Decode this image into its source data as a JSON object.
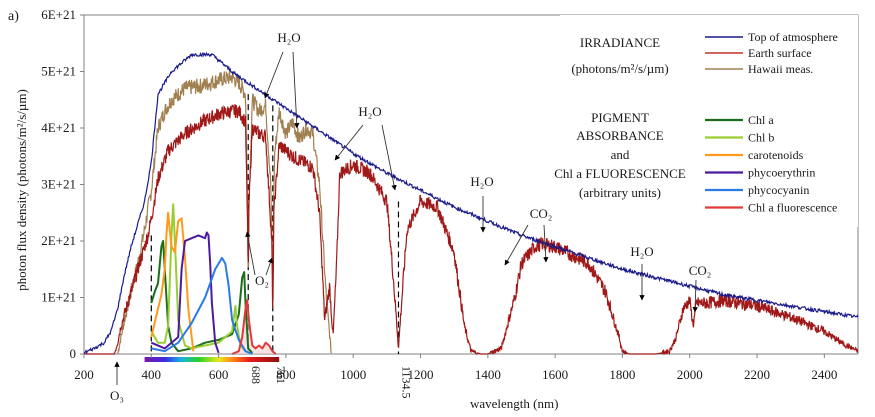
{
  "panel_label": "a)",
  "chart_data": {
    "type": "line",
    "title": "",
    "xlabel": "wavelength (nm)",
    "ylabel": "photon flux density (photons/m²/s/µm)",
    "xlim": [
      200,
      2500
    ],
    "ylim": [
      0,
      6e+21
    ],
    "grid": false,
    "x_ticks": [
      200,
      400,
      600,
      800,
      1000,
      1200,
      1400,
      1600,
      1800,
      2000,
      2200,
      2400
    ],
    "y_ticks": [
      {
        "value": 0,
        "label": "0"
      },
      {
        "value": 1e+21,
        "label": "1E+21"
      },
      {
        "value": 2e+21,
        "label": "2E+21"
      },
      {
        "value": 3e+21,
        "label": "3E+21"
      },
      {
        "value": 4e+21,
        "label": "4E+21"
      },
      {
        "value": 5e+21,
        "label": "5E+21"
      },
      {
        "value": 6e+21,
        "label": "6E+21"
      }
    ],
    "special_x_labels": [
      {
        "value": 688,
        "label": "688"
      },
      {
        "value": 761,
        "label": "761"
      },
      {
        "value": 1134.5,
        "label": "1134.5"
      }
    ],
    "dashed_lines_x": [
      400,
      688,
      761,
      1134.5
    ],
    "legend_irradiance": {
      "title": "IRRADIANCE",
      "units": "(photons/m²/s/µm)",
      "entries": [
        {
          "name": "Top of atmosphere",
          "color": "#1a1a8c"
        },
        {
          "name": "Earth surface",
          "color": "#c0302a"
        },
        {
          "name": "Hawaii meas.",
          "color": "#a08050"
        }
      ]
    },
    "legend_pigment": {
      "title_lines": [
        "PIGMENT",
        "ABSORBANCE",
        "and",
        "Chl a FLUORESCENCE",
        "(arbitrary units)"
      ],
      "entries": [
        {
          "name": "Chl a",
          "color": "#1a6e1a"
        },
        {
          "name": "Chl b",
          "color": "#9acd32"
        },
        {
          "name": "carotenoids",
          "color": "#ff9a1a"
        },
        {
          "name": "phycoerythrin",
          "color": "#4b1aa0"
        },
        {
          "name": "phycocyanin",
          "color": "#2a7ae8"
        },
        {
          "name": "Chl a fluorescence",
          "color": "#e03a3a"
        }
      ]
    },
    "series": [
      {
        "name": "Top of atmosphere",
        "color": "#1a1a8c",
        "x": [
          200,
          230,
          260,
          280,
          300,
          320,
          340,
          360,
          380,
          400,
          420,
          440,
          460,
          480,
          500,
          520,
          540,
          560,
          580,
          600,
          620,
          650,
          700,
          750,
          800,
          850,
          900,
          950,
          1000,
          1100,
          1200,
          1300,
          1400,
          1500,
          1600,
          1700,
          1800,
          1900,
          2000,
          2100,
          2200,
          2300,
          2400,
          2500
        ],
        "y": [
          2e+19,
          1e+20,
          2e+20,
          4e+20,
          8e+20,
          1.4e+21,
          1.9e+21,
          2.3e+21,
          2.7e+21,
          3.4e+21,
          4.6e+21,
          4.8e+21,
          5e+21,
          5.1e+21,
          5.2e+21,
          5.3e+21,
          5.3e+21,
          5.3e+21,
          5.3e+21,
          5.2e+21,
          5.1e+21,
          4.95e+21,
          4.75e+21,
          4.55e+21,
          4.35e+21,
          4.15e+21,
          3.95e+21,
          3.75e+21,
          3.55e+21,
          3.2e+21,
          2.9e+21,
          2.6e+21,
          2.35e+21,
          2.1e+21,
          1.9e+21,
          1.7e+21,
          1.5e+21,
          1.35e+21,
          1.2e+21,
          1.05e+21,
          9.5e+20,
          8.5e+20,
          7.5e+20,
          6.5e+20
        ]
      },
      {
        "name": "Earth surface",
        "color": "#a01818",
        "x": [
          200,
          290,
          300,
          310,
          330,
          350,
          370,
          390,
          400,
          420,
          450,
          500,
          550,
          600,
          640,
          660,
          680,
          687,
          688,
          689,
          700,
          720,
          740,
          758,
          761,
          764,
          780,
          800,
          820,
          880,
          900,
          915,
          930,
          940,
          950,
          960,
          1000,
          1050,
          1100,
          1120,
          1134.5,
          1140,
          1160,
          1200,
          1250,
          1300,
          1330,
          1350,
          1380,
          1400,
          1440,
          1480,
          1500,
          1540,
          1560,
          1600,
          1650,
          1700,
          1750,
          1790,
          1800,
          1820,
          1850,
          1900,
          1940,
          1960,
          1980,
          2000,
          2010,
          2020,
          2050,
          2100,
          2200,
          2300,
          2400,
          2450,
          2500
        ],
        "y": [
          0,
          0,
          2e+20,
          5e+20,
          9e+20,
          1.3e+21,
          1.7e+21,
          2.1e+21,
          2.4e+21,
          3.1e+21,
          3.6e+21,
          3.9e+21,
          4.1e+21,
          4.25e+21,
          4.3e+21,
          4.3e+21,
          4.1e+21,
          2e+21,
          1e+21,
          2.5e+21,
          4e+21,
          3.9e+21,
          3.85e+21,
          2e+21,
          5e+20,
          2.5e+21,
          3.7e+21,
          3.6e+21,
          3.5e+21,
          3.3e+21,
          2.5e+21,
          6e+20,
          1.2e+21,
          3e+20,
          1.5e+21,
          3.2e+21,
          3.35e+21,
          3.2e+21,
          2.7e+21,
          1.3e+21,
          1e+20,
          6e+20,
          2.2e+21,
          2.7e+21,
          2.6e+21,
          1.8e+21,
          5e+20,
          5e+19,
          0,
          0,
          1e+20,
          1e+21,
          1.6e+21,
          1.9e+21,
          1.95e+21,
          1.9e+21,
          1.75e+21,
          1.6e+21,
          1.1e+21,
          3e+20,
          5e+19,
          0,
          0,
          0,
          5e+19,
          3e+20,
          8e+20,
          9.5e+20,
          5e+20,
          9e+20,
          9e+20,
          9.5e+20,
          8.5e+20,
          6.5e+20,
          4e+20,
          2e+20,
          5e+19
        ]
      },
      {
        "name": "Hawaii meas.",
        "color": "#a08050",
        "x": [
          300,
          320,
          340,
          360,
          380,
          400,
          420,
          440,
          460,
          500,
          550,
          600,
          640,
          660,
          680,
          687,
          688,
          690,
          700,
          720,
          740,
          755,
          761,
          766,
          780,
          800,
          820,
          840,
          860,
          880,
          900,
          910,
          920,
          935
        ],
        "y": [
          0,
          6e+20,
          1.1e+21,
          1.6e+21,
          2.2e+21,
          2.9e+21,
          4e+21,
          4.3e+21,
          4.5e+21,
          4.7e+21,
          4.75e+21,
          4.85e+21,
          4.9e+21,
          4.8e+21,
          4.6e+21,
          2.2e+21,
          1.1e+21,
          2.6e+21,
          4.5e+21,
          4.3e+21,
          4.4e+21,
          3e+21,
          1.2e+21,
          3.5e+21,
          4.3e+21,
          3.9e+21,
          4.1e+21,
          3.8e+21,
          4e+21,
          3.9e+21,
          3e+21,
          2e+21,
          1e+21,
          0
        ]
      }
    ],
    "pigment_series_note": "arbitrary units plotted on same axes (values in axis units)",
    "pigment_series": [
      {
        "name": "Chl a",
        "color": "#1a6e1a",
        "x": [
          400,
          410,
          420,
          430,
          435,
          440,
          450,
          460,
          480,
          520,
          560,
          600,
          640,
          660,
          670,
          676,
          680,
          688,
          700
        ],
        "y": [
          9e+20,
          1.1e+21,
          1.25e+21,
          1.9e+21,
          2e+21,
          1.5e+21,
          5e+20,
          2e+20,
          5e+19,
          1e+20,
          2e+20,
          2.5e+20,
          3.5e+20,
          7e+20,
          1.35e+21,
          1.45e+21,
          9e+20,
          1e+20,
          2e+19
        ]
      },
      {
        "name": "Chl b",
        "color": "#9acd32",
        "x": [
          400,
          420,
          440,
          450,
          460,
          465,
          470,
          480,
          500,
          520,
          560,
          600,
          640,
          650,
          655,
          665,
          680
        ],
        "y": [
          4e+20,
          2e+20,
          2e+20,
          5e+20,
          2.1e+21,
          2.65e+21,
          2e+21,
          6e+20,
          1.5e+20,
          1e+20,
          1.5e+20,
          2e+20,
          4e+20,
          8.5e+20,
          5e+20,
          1.5e+20,
          5e+19
        ]
      },
      {
        "name": "carotenoids",
        "color": "#ff9a1a",
        "x": [
          400,
          420,
          430,
          440,
          445,
          450,
          460,
          470,
          480,
          490,
          500,
          510,
          520,
          525
        ],
        "y": [
          3e+20,
          8e+20,
          1.05e+21,
          1.5e+21,
          2.1e+21,
          2.5e+21,
          1.9e+21,
          1.8e+21,
          2.35e+21,
          2.4e+21,
          1.7e+21,
          8e+20,
          3e+20,
          5e+19
        ]
      },
      {
        "name": "phycoerythrin",
        "color": "#4b1aa0",
        "x": [
          400,
          440,
          480,
          490,
          500,
          520,
          540,
          560,
          565,
          570,
          575,
          580,
          590,
          600
        ],
        "y": [
          2e+20,
          1e+20,
          3e+20,
          1.5e+21,
          2e+21,
          2.05e+21,
          2.1e+21,
          2.05e+21,
          2.15e+21,
          2.1e+21,
          1.6e+21,
          9e+20,
          2e+20,
          2e+19
        ]
      },
      {
        "name": "phycocyanin",
        "color": "#2a7ae8",
        "x": [
          400,
          440,
          480,
          520,
          560,
          590,
          610,
          620,
          630,
          640,
          660,
          680,
          700
        ],
        "y": [
          1e+20,
          5e+19,
          2e+20,
          5.5e+20,
          1e+21,
          1.5e+21,
          1.7e+21,
          1.6e+21,
          1.2e+21,
          6e+20,
          2.5e+20,
          5e+19,
          0.0
        ]
      },
      {
        "name": "Chl a fluorescence",
        "color": "#e03a3a",
        "x": [
          640,
          660,
          670,
          680,
          685,
          690,
          700,
          710,
          720,
          730,
          740,
          750,
          760,
          770
        ],
        "y": [
          0,
          5e+19,
          3e+20,
          8e+20,
          9.5e+20,
          6e+20,
          1.5e+20,
          1e+20,
          1.5e+20,
          1e+20,
          2e+20,
          1.5e+20,
          5e+19,
          0
        ]
      }
    ],
    "annotations": [
      {
        "text": "H₂O",
        "x": 790,
        "y": 5.7e+21
      },
      {
        "text": "H₂O",
        "x": 1010,
        "y": 4.2e+21
      },
      {
        "text": "H₂O",
        "x": 1290,
        "y": 3e+21
      },
      {
        "text": "CO₂",
        "x": 1580,
        "y": 2.6e+21
      },
      {
        "text": "H₂O",
        "x": 1880,
        "y": 1.7e+21
      },
      {
        "text": "CO₂",
        "x": 2040,
        "y": 9e+20
      },
      {
        "text": "O₂",
        "x": 735,
        "y": 1.65e+21
      },
      {
        "text": "O₃",
        "x": 300,
        "y": -1e+21
      }
    ]
  }
}
